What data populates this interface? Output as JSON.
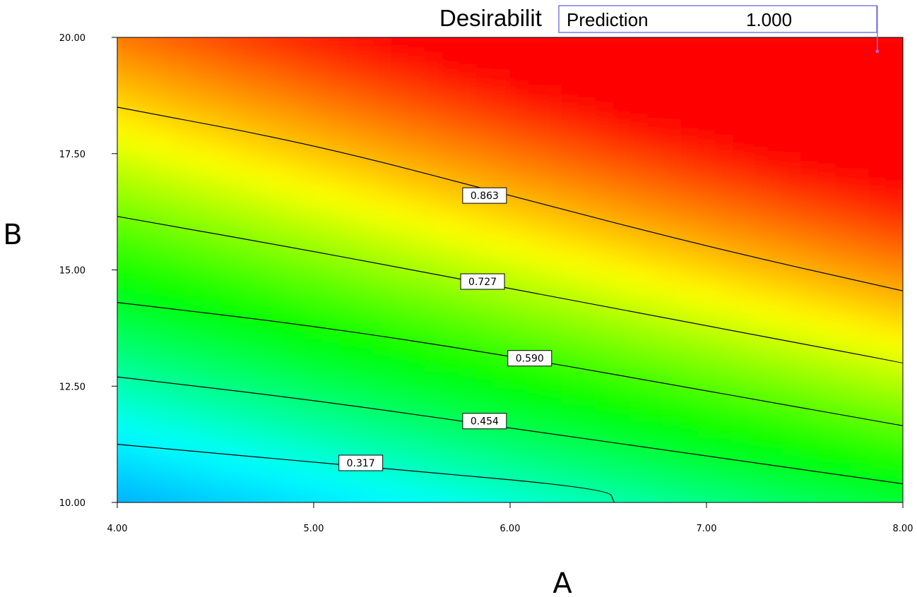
{
  "chart_data": {
    "type": "contour",
    "title": "Desirabilit",
    "xlabel": "A",
    "ylabel": "B",
    "xlim": [
      4.0,
      8.0
    ],
    "ylim": [
      10.0,
      20.0
    ],
    "x_ticks": [
      "4.00",
      "5.00",
      "6.00",
      "7.00",
      "8.00"
    ],
    "y_ticks": [
      "10.00",
      "12.50",
      "15.00",
      "17.50",
      "20.00"
    ],
    "x_tick_values": [
      4.0,
      5.0,
      6.0,
      7.0,
      8.0
    ],
    "y_tick_values": [
      10.0,
      12.5,
      15.0,
      17.5,
      20.0
    ],
    "contours": [
      {
        "level": "0.317",
        "value": 0.317,
        "points": [
          [
            4.0,
            11.25
          ],
          [
            5.3,
            10.75
          ],
          [
            6.5,
            10.3
          ],
          [
            6.53,
            10.0
          ]
        ],
        "label_at": [
          5.24,
          10.85
        ]
      },
      {
        "level": "0.454",
        "value": 0.454,
        "points": [
          [
            4.0,
            12.7
          ],
          [
            5.0,
            12.2
          ],
          [
            6.0,
            11.6
          ],
          [
            7.0,
            11.0
          ],
          [
            8.0,
            10.4
          ]
        ],
        "label_at": [
          5.87,
          11.75
        ]
      },
      {
        "level": "0.590",
        "value": 0.59,
        "points": [
          [
            4.0,
            14.3
          ],
          [
            5.0,
            13.8
          ],
          [
            6.0,
            13.15
          ],
          [
            7.0,
            12.4
          ],
          [
            8.0,
            11.65
          ]
        ],
        "label_at": [
          6.1,
          13.1
        ]
      },
      {
        "level": "0.727",
        "value": 0.727,
        "points": [
          [
            4.0,
            16.15
          ],
          [
            5.0,
            15.4
          ],
          [
            6.0,
            14.6
          ],
          [
            7.0,
            13.8
          ],
          [
            8.0,
            13.0
          ]
        ],
        "label_at": [
          5.86,
          14.75
        ]
      },
      {
        "level": "0.863",
        "value": 0.863,
        "points": [
          [
            4.0,
            18.5
          ],
          [
            5.0,
            17.7
          ],
          [
            6.0,
            16.6
          ],
          [
            7.0,
            15.5
          ],
          [
            8.0,
            14.55
          ]
        ],
        "label_at": [
          5.87,
          16.6
        ]
      }
    ],
    "prediction": {
      "label": "Prediction",
      "value": "1.000",
      "point": [
        7.87,
        19.7
      ]
    },
    "colormap": [
      "#0a7fff",
      "#00ffff",
      "#00ff00",
      "#ffff00",
      "#ff8000",
      "#ff0000"
    ],
    "grid": false,
    "legend": "none"
  }
}
